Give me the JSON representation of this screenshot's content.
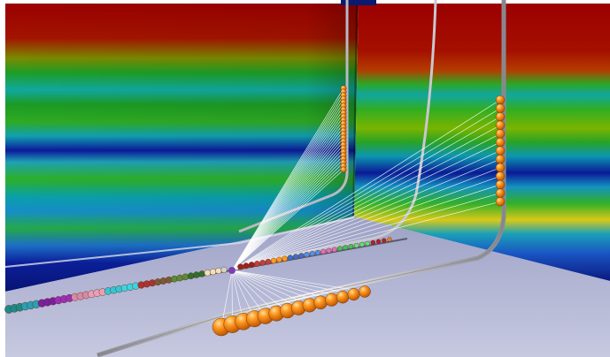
{
  "scene": {
    "background": "#ffffff",
    "floor_near": "#b8bbd6",
    "floor_far": "#9ea2c6",
    "marker_color": "#ff8a1c",
    "tube_color": "#c9c9cf",
    "heatmap_colors": [
      "#9b0a00",
      "#1aa81a",
      "#0aa7a0",
      "#0b1a9b",
      "#e0dc10"
    ]
  },
  "labels": {}
}
